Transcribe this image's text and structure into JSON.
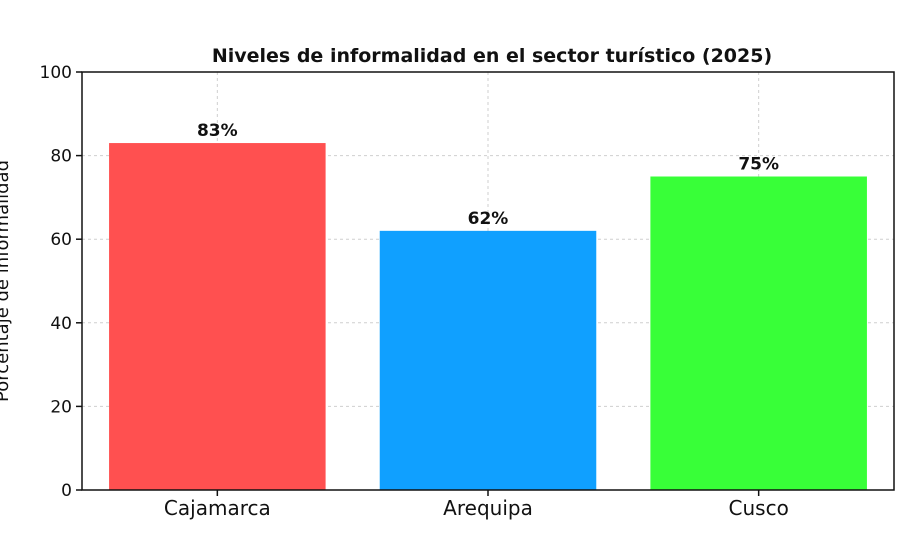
{
  "chart_data": {
    "type": "bar",
    "title": "Niveles de informalidad en el sector turístico (2025)",
    "xlabel": "",
    "ylabel": "Porcentaje de informalidad",
    "categories": [
      "Cajamarca",
      "Arequipa",
      "Cusco"
    ],
    "values": [
      83,
      62,
      75
    ],
    "data_labels": [
      "83%",
      "62%",
      "75%"
    ],
    "colors": [
      "#ff5050",
      "#10a0ff",
      "#38ff38"
    ],
    "ylim": [
      0,
      100
    ],
    "yticks": [
      0,
      20,
      40,
      60,
      80,
      100
    ],
    "grid": true,
    "legend": false
  }
}
